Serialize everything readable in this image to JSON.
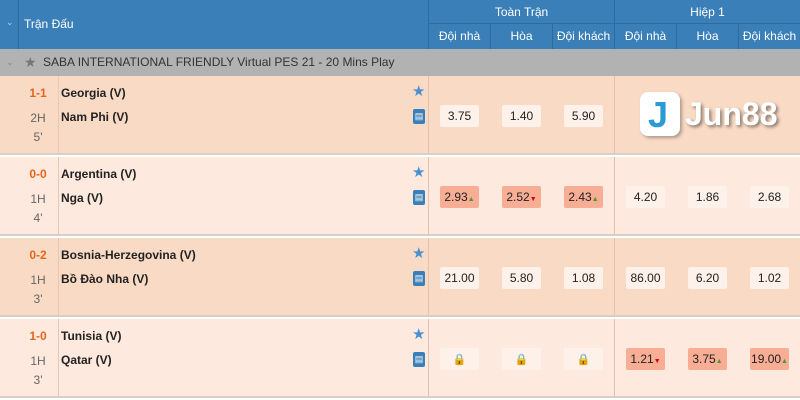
{
  "header": {
    "title": "Trận Đấu",
    "groups": [
      "Toàn Trận",
      "Hiệp 1"
    ],
    "sub": [
      "Đội nhà",
      "Hòa",
      "Đội khách",
      "Đội nhà",
      "Hòa",
      "Đội khách"
    ]
  },
  "league": {
    "name": "SABA INTERNATIONAL FRIENDLY Virtual PES 21 - 20 Mins Play"
  },
  "logo": "Jun88",
  "colors": {
    "header": "#3a7fb8",
    "score": "#e4661c",
    "highlight": "#f8ae94"
  },
  "matches": [
    {
      "score": "1-1",
      "half": "2H",
      "minute": "5'",
      "home": "Georgia (V)",
      "away": "Nam Phi (V)",
      "odds": [
        {
          "v": "3.75"
        },
        {
          "v": "1.40"
        },
        {
          "v": "5.90"
        }
      ]
    },
    {
      "score": "0-0",
      "half": "1H",
      "minute": "4'",
      "home": "Argentina (V)",
      "away": "Nga (V)",
      "odds": [
        {
          "v": "2.93",
          "t": "up"
        },
        {
          "v": "2.52",
          "t": "down"
        },
        {
          "v": "2.43",
          "t": "up"
        },
        {
          "v": "4.20"
        },
        {
          "v": "1.86"
        },
        {
          "v": "2.68"
        }
      ]
    },
    {
      "score": "0-2",
      "half": "1H",
      "minute": "3'",
      "home": "Bosnia-Herzegovina (V)",
      "away": "Bồ Đào Nha (V)",
      "odds": [
        {
          "v": "21.00"
        },
        {
          "v": "5.80"
        },
        {
          "v": "1.08"
        },
        {
          "v": "86.00"
        },
        {
          "v": "6.20"
        },
        {
          "v": "1.02"
        }
      ]
    },
    {
      "score": "1-0",
      "half": "1H",
      "minute": "3'",
      "home": "Tunisia (V)",
      "away": "Qatar (V)",
      "odds": [
        {
          "lock": true
        },
        {
          "lock": true
        },
        {
          "lock": true
        },
        {
          "v": "1.21",
          "t": "down"
        },
        {
          "v": "3.75",
          "t": "up"
        },
        {
          "v": "19.00",
          "t": "up"
        }
      ]
    }
  ]
}
